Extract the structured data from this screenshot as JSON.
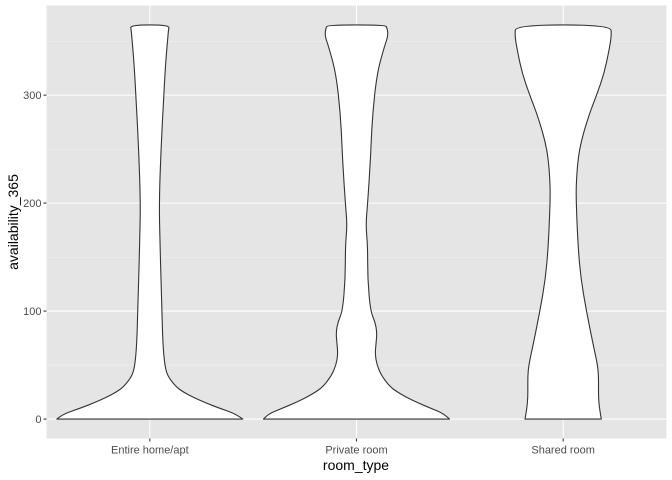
{
  "chart_data": {
    "type": "violin",
    "title": "",
    "xlabel": "room_type",
    "ylabel": "availability_365",
    "categories": [
      "Entire home/apt",
      "Private room",
      "Shared room"
    ],
    "ylim": [
      -18,
      383
    ],
    "yticks": [
      0,
      100,
      200,
      300
    ],
    "grid": true,
    "legend": "none",
    "colors": {
      "panel": "#e5e5e5",
      "grid_major": "#ffffff",
      "grid_minor": "#f1f1f1",
      "violin_fill": "#ffffff",
      "violin_stroke": "#333333",
      "tick_text": "#4d4d4d",
      "title_text": "#000000"
    },
    "series": [
      {
        "category": "Entire home/apt",
        "profile": [
          [
            0,
            1.0
          ],
          [
            5,
            0.92
          ],
          [
            10,
            0.75
          ],
          [
            15,
            0.6
          ],
          [
            20,
            0.47
          ],
          [
            25,
            0.36
          ],
          [
            30,
            0.28
          ],
          [
            40,
            0.19
          ],
          [
            50,
            0.16
          ],
          [
            70,
            0.14
          ],
          [
            100,
            0.13
          ],
          [
            130,
            0.12
          ],
          [
            160,
            0.11
          ],
          [
            200,
            0.1
          ],
          [
            250,
            0.12
          ],
          [
            300,
            0.15
          ],
          [
            330,
            0.17
          ],
          [
            350,
            0.19
          ],
          [
            360,
            0.2
          ],
          [
            365,
            0.21
          ]
        ]
      },
      {
        "category": "Private room",
        "profile": [
          [
            0,
            1.0
          ],
          [
            5,
            0.94
          ],
          [
            10,
            0.8
          ],
          [
            15,
            0.66
          ],
          [
            20,
            0.54
          ],
          [
            25,
            0.44
          ],
          [
            30,
            0.36
          ],
          [
            40,
            0.27
          ],
          [
            50,
            0.22
          ],
          [
            60,
            0.2
          ],
          [
            70,
            0.21
          ],
          [
            80,
            0.22
          ],
          [
            90,
            0.2
          ],
          [
            100,
            0.15
          ],
          [
            130,
            0.12
          ],
          [
            160,
            0.12
          ],
          [
            180,
            0.1
          ],
          [
            200,
            0.12
          ],
          [
            240,
            0.15
          ],
          [
            280,
            0.17
          ],
          [
            320,
            0.22
          ],
          [
            345,
            0.3
          ],
          [
            355,
            0.34
          ],
          [
            362,
            0.33
          ],
          [
            365,
            0.31
          ]
        ]
      },
      {
        "category": "Shared room",
        "profile": [
          [
            0,
            0.41
          ],
          [
            10,
            0.39
          ],
          [
            20,
            0.38
          ],
          [
            30,
            0.38
          ],
          [
            40,
            0.38
          ],
          [
            50,
            0.37
          ],
          [
            70,
            0.32
          ],
          [
            100,
            0.25
          ],
          [
            130,
            0.19
          ],
          [
            160,
            0.16
          ],
          [
            200,
            0.14
          ],
          [
            220,
            0.14
          ],
          [
            250,
            0.17
          ],
          [
            280,
            0.27
          ],
          [
            300,
            0.36
          ],
          [
            320,
            0.44
          ],
          [
            340,
            0.49
          ],
          [
            355,
            0.52
          ],
          [
            365,
            0.51
          ]
        ]
      }
    ]
  }
}
